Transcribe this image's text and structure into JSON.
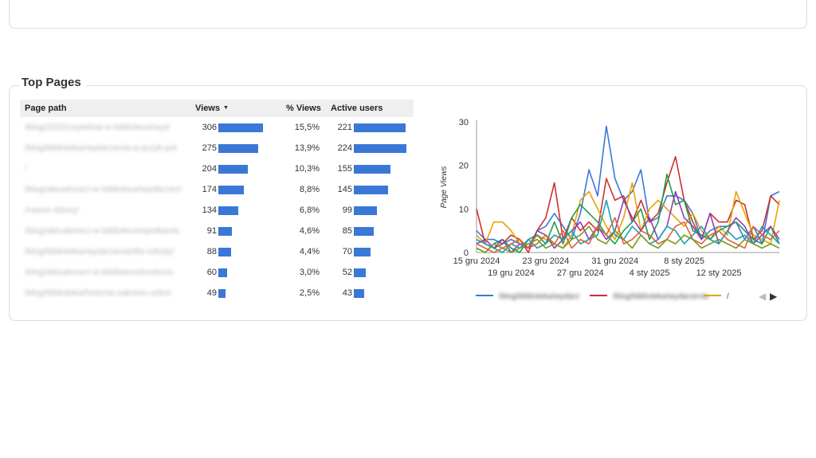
{
  "section": {
    "title": "Top Pages"
  },
  "table": {
    "headers": {
      "path": "Page path",
      "views": "Views",
      "pct": "% Views",
      "active": "Active users"
    },
    "sort_icon": "sort-down-icon",
    "rows": [
      {
        "path": "/blog/2022/czytelnia-w-bibliotece/wyd",
        "views": 306,
        "views_label": "306",
        "pct": "15,5%",
        "active": 221,
        "active_label": "221"
      },
      {
        "path": "/blog/biblioteka/wydarzenia-w-jezyk-pol",
        "views": 275,
        "views_label": "275",
        "pct": "13,9%",
        "active": 224,
        "active_label": "224"
      },
      {
        "path": "/",
        "views": 204,
        "views_label": "204",
        "pct": "10,3%",
        "active": 155,
        "active_label": "155"
      },
      {
        "path": "/blog/aktualnosci-w-bibliotece/wydarzeni",
        "views": 174,
        "views_label": "174",
        "pct": "8,8%",
        "active": 145,
        "active_label": "145"
      },
      {
        "path": "/nasze-zbiory/",
        "views": 134,
        "views_label": "134",
        "pct": "6,8%",
        "active": 99,
        "active_label": "99"
      },
      {
        "path": "/blog/aktualnosci-w-bibliotece/spotkanie",
        "views": 91,
        "views_label": "91",
        "pct": "4,6%",
        "active": 85,
        "active_label": "85"
      },
      {
        "path": "/blog/biblioteka/wydarzenia/dla-szkoly/",
        "views": 88,
        "views_label": "88",
        "pct": "4,4%",
        "active": 70,
        "active_label": "70"
      },
      {
        "path": "/blog/aktualnosci-w-bibliotece/konkurs-",
        "views": 60,
        "views_label": "60",
        "pct": "3,0%",
        "active": 52,
        "active_label": "52"
      },
      {
        "path": "/blog/biblioteka/historia-zakresu-szkol",
        "views": 49,
        "views_label": "49",
        "pct": "2,5%",
        "active": 43,
        "active_label": "43"
      }
    ]
  },
  "chart_data": {
    "type": "line",
    "ylabel": "Page Views",
    "ylim": [
      0,
      30
    ],
    "yticks": [
      "0",
      "10",
      "20",
      "30"
    ],
    "x_ticks_row1": [
      "15 gru 2024",
      "23 gru 2024",
      "31 gru 2024",
      "8 sty 2025"
    ],
    "x_ticks_row2": [
      "19 gru 2024",
      "27 gru 2024",
      "4 sty 2025",
      "12 sty 2025"
    ],
    "x_count": 36,
    "series": [
      {
        "name": "/blog/biblioteka/wydarz",
        "color": "#3b78d8",
        "values": [
          5,
          3,
          3,
          2,
          3,
          2,
          1,
          5,
          6,
          9,
          6,
          3,
          9,
          19,
          13,
          29,
          17,
          12,
          14,
          19,
          7,
          8,
          13,
          13,
          12,
          9,
          3,
          5,
          6,
          6,
          7,
          3,
          6,
          2,
          13,
          14
        ]
      },
      {
        "name": "/blog/biblioteka/wydarzenia",
        "color": "#d0302f",
        "values": [
          10,
          2,
          1,
          2,
          4,
          3,
          0,
          5,
          8,
          16,
          3,
          8,
          5,
          7,
          5,
          17,
          12,
          13,
          7,
          12,
          7,
          9,
          16,
          22,
          12,
          7,
          3,
          9,
          7,
          7,
          12,
          11,
          3,
          5,
          13,
          11
        ]
      },
      {
        "name": "/",
        "color": "#e6a400",
        "values": [
          4,
          2,
          7,
          7,
          5,
          2,
          1,
          4,
          3,
          2,
          1,
          4,
          12,
          14,
          10,
          6,
          3,
          8,
          16,
          5,
          10,
          12,
          10,
          8,
          6,
          9,
          5,
          3,
          6,
          4,
          14,
          9,
          4,
          3,
          2,
          12
        ]
      },
      {
        "name": "",
        "color": "#1f9e48",
        "values": [
          1,
          0,
          2,
          3,
          1,
          0,
          3,
          4,
          2,
          7,
          2,
          8,
          11,
          9,
          7,
          4,
          2,
          5,
          7,
          10,
          3,
          7,
          18,
          11,
          12,
          5,
          4,
          3,
          5,
          6,
          7,
          5,
          3,
          2,
          6,
          2
        ]
      },
      {
        "name": "",
        "color": "#8e3fb0",
        "values": [
          2,
          3,
          1,
          3,
          0,
          2,
          1,
          5,
          4,
          1,
          3,
          5,
          7,
          3,
          6,
          3,
          5,
          12,
          8,
          5,
          8,
          3,
          6,
          14,
          8,
          6,
          3,
          9,
          2,
          5,
          8,
          6,
          2,
          4,
          6,
          3
        ]
      },
      {
        "name": "",
        "color": "#15a3b8",
        "values": [
          3,
          2,
          1,
          0,
          2,
          1,
          3,
          1,
          2,
          4,
          3,
          5,
          2,
          3,
          4,
          12,
          4,
          3,
          6,
          4,
          2,
          3,
          6,
          5,
          2,
          4,
          6,
          3,
          2,
          5,
          3,
          4,
          2,
          6,
          4,
          2
        ]
      },
      {
        "name": "",
        "color": "#e0623b",
        "values": [
          2,
          1,
          0,
          1,
          2,
          3,
          1,
          2,
          4,
          2,
          5,
          1,
          3,
          2,
          6,
          4,
          8,
          2,
          3,
          5,
          4,
          2,
          3,
          6,
          7,
          3,
          2,
          4,
          5,
          3,
          2,
          1,
          6,
          4,
          3,
          5
        ]
      },
      {
        "name": "",
        "color": "#7e9a22",
        "values": [
          1,
          0,
          2,
          1,
          0,
          1,
          2,
          3,
          1,
          2,
          1,
          3,
          4,
          6,
          3,
          2,
          5,
          3,
          1,
          4,
          2,
          1,
          3,
          2,
          4,
          3,
          1,
          2,
          3,
          2,
          1,
          3,
          2,
          1,
          2,
          1
        ]
      }
    ],
    "legend": [
      {
        "label": "/blog/biblioteka/wydarz",
        "color": "#3b78d8"
      },
      {
        "label": "/blog/biblioteka/wydarzenia",
        "color": "#d0302f"
      },
      {
        "label": "/",
        "color": "#e6a400"
      }
    ],
    "legend_nav": {
      "prev_icon": "chevron-left-icon",
      "next_icon": "chevron-right-icon",
      "prev_glyph": "◀",
      "next_glyph": "▶"
    }
  }
}
